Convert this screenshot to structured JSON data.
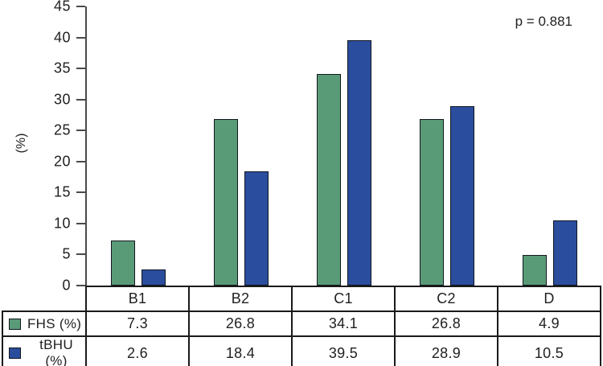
{
  "chart_data": {
    "type": "bar",
    "categories": [
      "B1",
      "B2",
      "C1",
      "C2",
      "D"
    ],
    "series": [
      {
        "name": "FHS (%)",
        "color": "#5a9b77",
        "values": [
          7.3,
          26.8,
          34.1,
          26.8,
          4.9
        ]
      },
      {
        "name": "tBHU (%)",
        "color": "#2b4d9d",
        "values": [
          2.6,
          18.4,
          39.5,
          28.9,
          10.5
        ]
      }
    ],
    "title": "",
    "xlabel": "",
    "ylabel": "(%)",
    "ylim": [
      0,
      45
    ],
    "ytick_step": 5,
    "annotation": "p = 0.881",
    "grid": false,
    "legend_position": "table-rows-below-chart"
  },
  "colors": {
    "axis": "#4a4a4a",
    "table_border": "#1a1a1a",
    "bar_border": "#11161f",
    "text": "#1f1f1f",
    "background": "#ffffff"
  }
}
